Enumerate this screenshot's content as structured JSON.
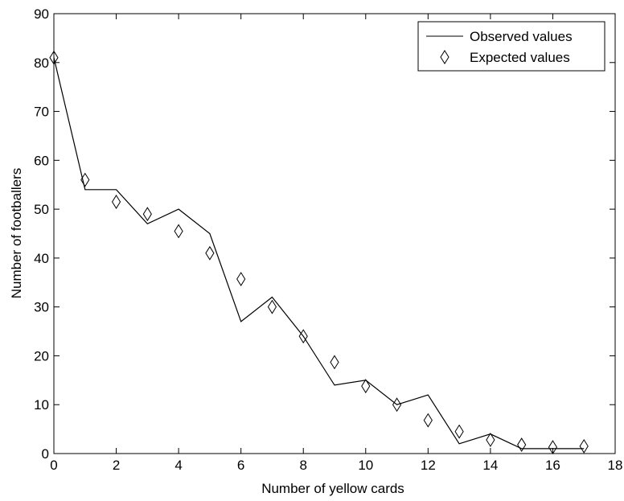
{
  "chart_data": {
    "type": "line",
    "title": "",
    "xlabel": "Number of yellow cards",
    "ylabel": "Number of footballers",
    "xlim": [
      0,
      18
    ],
    "ylim": [
      0,
      90
    ],
    "xticks": [
      0,
      2,
      4,
      6,
      8,
      10,
      12,
      14,
      16,
      18
    ],
    "yticks": [
      0,
      10,
      20,
      30,
      40,
      50,
      60,
      70,
      80,
      90
    ],
    "grid": false,
    "legend_position": "top-right",
    "series": [
      {
        "name": "Observed values",
        "style": "line",
        "color": "#000000",
        "x": [
          0,
          1,
          2,
          3,
          4,
          5,
          6,
          7,
          8,
          9,
          10,
          11,
          12,
          13,
          14,
          15,
          16,
          17
        ],
        "y": [
          81,
          54,
          54,
          47,
          50,
          45,
          27,
          32,
          24,
          14,
          15,
          10,
          12,
          2,
          4,
          1,
          1,
          1
        ]
      },
      {
        "name": "Expected values",
        "style": "diamond-marker",
        "color": "#000000",
        "x": [
          0,
          1,
          2,
          3,
          4,
          5,
          6,
          7,
          8,
          9,
          10,
          11,
          12,
          13,
          14,
          15,
          16,
          17
        ],
        "y": [
          81,
          56,
          51.5,
          49,
          45.5,
          41,
          35.7,
          30,
          24,
          18.7,
          13.8,
          10,
          6.8,
          4.5,
          2.8,
          1.8,
          1.3,
          1.5
        ]
      }
    ]
  }
}
